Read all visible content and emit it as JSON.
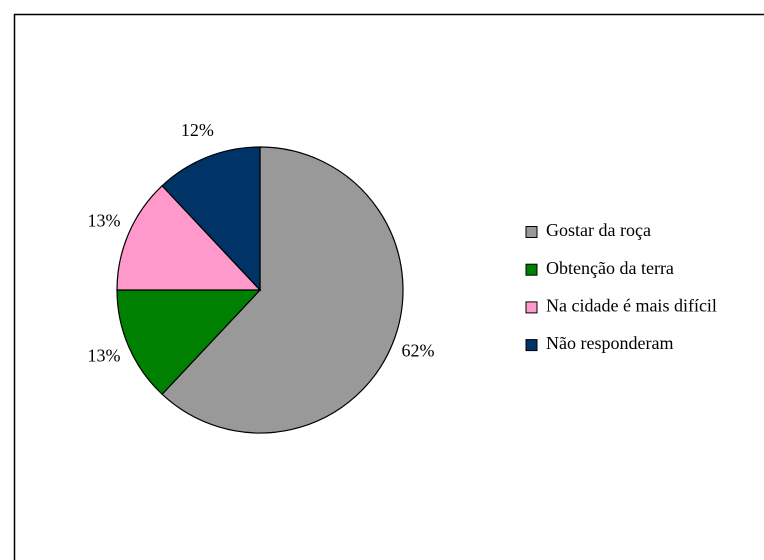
{
  "chart_data": {
    "type": "pie",
    "categories": [
      "Gostar da roça",
      "Obtenção da terra",
      "Na cidade é mais difícil",
      "Não responderam"
    ],
    "values": [
      62,
      13,
      13,
      12
    ],
    "value_labels": [
      "62%",
      "13%",
      "13%",
      "12%"
    ],
    "colors": [
      "#999999",
      "#008000",
      "#ff99cc",
      "#003366"
    ],
    "legend": "right"
  }
}
